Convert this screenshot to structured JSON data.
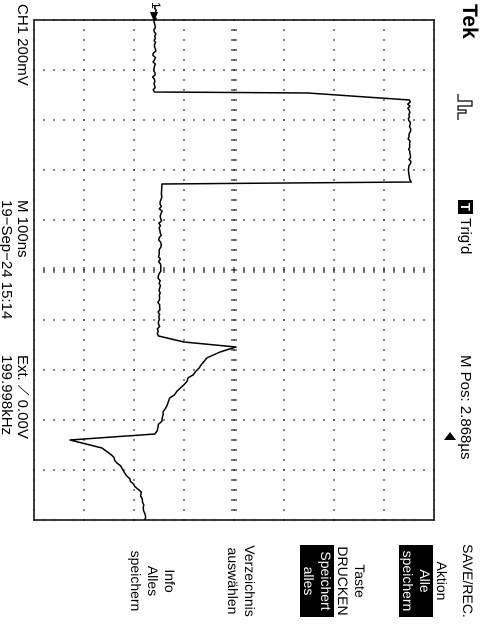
{
  "header": {
    "brand": "Tek",
    "acquisition_icon": "acquisition-waveform-icon",
    "trigger_badge": "T",
    "trigger_status": "Trig'd",
    "m_pos": "M Pos: 2.868µs"
  },
  "footer": {
    "channel": "CH1  200mV",
    "timebase": "M 100ns",
    "trigger_setting": "Ext. ⟋ 0.00V",
    "date_time": "19−Sep−24 15:14",
    "frequency": "199.998kHz"
  },
  "trace": {
    "marker": "1",
    "marker_arrow_icon": "channel-marker-arrow-icon",
    "trigger_marker_icon": "trigger-position-arrow-icon"
  },
  "menu": {
    "title": "SAVE/REC.",
    "action_label": "Aktion",
    "action_value_1": "Alle",
    "action_value_2": "speichern",
    "print_line_1": "Taste",
    "print_line_2": "DRUCKEN",
    "print_value_1": "Speichert",
    "print_value_2": "alles",
    "dir_line_1": "Verzeichnis",
    "dir_line_2": "auswählen",
    "info_line_1": "Info",
    "info_line_2": "Alles",
    "info_line_3": "speichern"
  },
  "colors": {
    "background": "#ffffff",
    "foreground": "#000000"
  }
}
